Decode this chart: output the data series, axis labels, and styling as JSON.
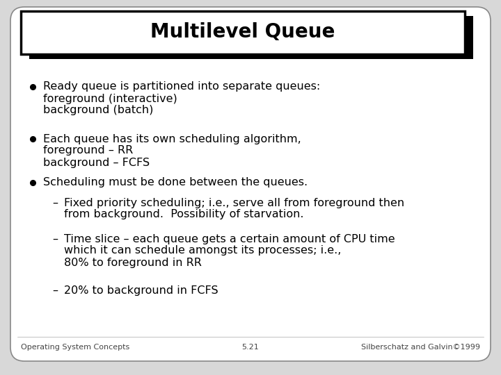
{
  "title": "Multilevel Queue",
  "bg_color": "#d8d8d8",
  "slide_bg": "#ffffff",
  "title_fontsize": 20,
  "body_fontsize": 11.5,
  "footer_fontsize": 8,
  "bullet1_line1": "Ready queue is partitioned into separate queues:",
  "bullet1_line2": "foreground (interactive)",
  "bullet1_line3": "background (batch)",
  "bullet2_line1": "Each queue has its own scheduling algorithm,",
  "bullet2_line2": "foreground – RR",
  "bullet2_line3": "background – FCFS",
  "bullet3_main": "Scheduling must be done between the queues.",
  "sub1_line1": "Fixed priority scheduling; i.e., serve all from foreground then",
  "sub1_line2": "from background.  Possibility of starvation.",
  "sub2_line1": "Time slice – each queue gets a certain amount of CPU time",
  "sub2_line2": "which it can schedule amongst its processes; i.e.,",
  "sub2_line3": "80% to foreground in RR",
  "sub3_line1": "20% to background in FCFS",
  "footer_left": "Operating System Concepts",
  "footer_center": "5.21",
  "footer_right": "Silberschatz and Galvin©1999"
}
